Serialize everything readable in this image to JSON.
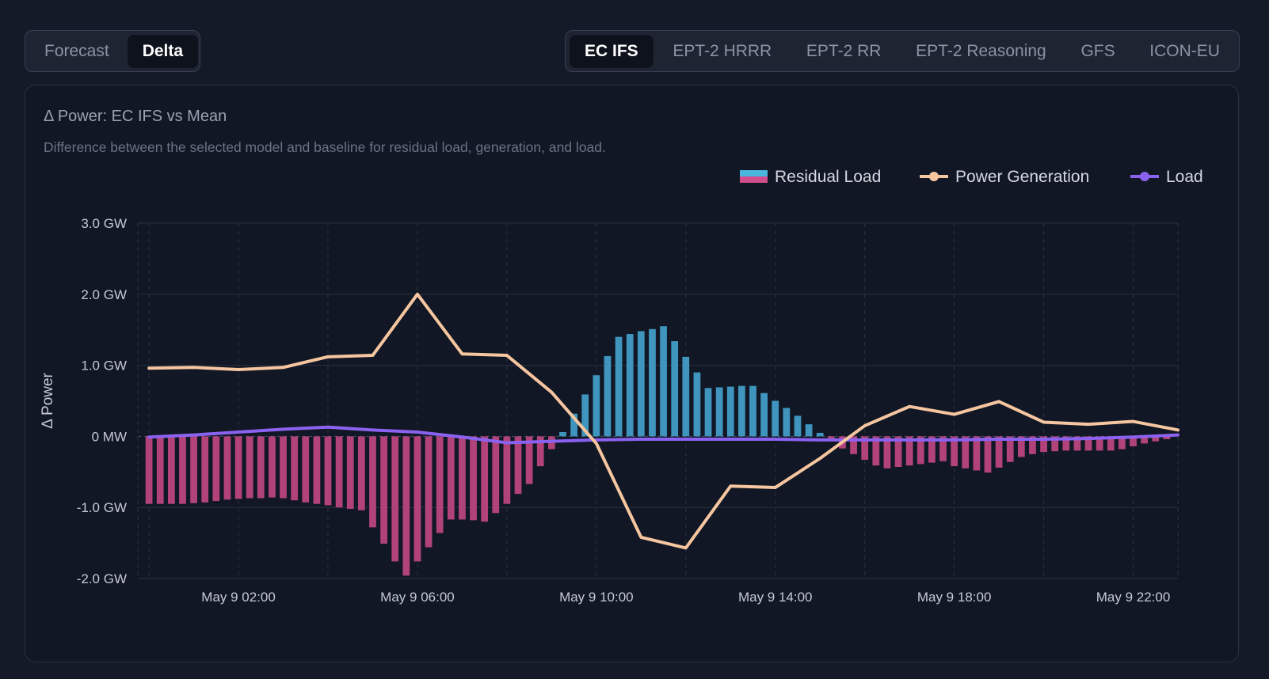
{
  "view_toggle": {
    "items": [
      {
        "label": "Forecast",
        "active": false
      },
      {
        "label": "Delta",
        "active": true
      }
    ]
  },
  "model_tabs": {
    "items": [
      {
        "label": "EC IFS",
        "active": true
      },
      {
        "label": "EPT-2 HRRR",
        "active": false
      },
      {
        "label": "EPT-2 RR",
        "active": false
      },
      {
        "label": "EPT-2 Reasoning",
        "active": false
      },
      {
        "label": "GFS",
        "active": false
      },
      {
        "label": "ICON-EU",
        "active": false
      }
    ]
  },
  "card": {
    "title": "Δ Power: EC IFS vs Mean",
    "subtitle": "Difference between the selected model and baseline for residual load, generation, and load."
  },
  "colors": {
    "residual_positive": "#3f95bd",
    "residual_negative": "#b1437a",
    "generation": "#f6c6a0",
    "load": "#8b62f0",
    "legend_residual_top": "#4ab6dd",
    "legend_residual_bottom": "#d24d8c"
  },
  "chart_data": {
    "type": "bar",
    "ylabel": "Δ Power",
    "ylim": [
      -2.0,
      3.0
    ],
    "y_ticks": [
      3.0,
      2.0,
      1.0,
      0,
      -1.0,
      -2.0
    ],
    "y_tick_labels": [
      "3.0 GW",
      "2.0 GW",
      "1.0 GW",
      "0 MW",
      "-1.0 GW",
      "-2.0 GW"
    ],
    "x_range_hours": [
      -0.25,
      23.0
    ],
    "x_ticks_hours": [
      2,
      6,
      10,
      14,
      18,
      22
    ],
    "x_tick_labels": [
      "May 9 02:00",
      "May 9 06:00",
      "May 9 10:00",
      "May 9 14:00",
      "May 9 18:00",
      "May 9 22:00"
    ],
    "legend": [
      "Residual Load",
      "Power Generation",
      "Load"
    ],
    "legend_position": "top-right",
    "grid": true,
    "series": [
      {
        "name": "Residual Load",
        "type": "bar",
        "interval_hours": 0.25,
        "start_hour": 0,
        "values": [
          -0.95,
          -0.95,
          -0.95,
          -0.95,
          -0.94,
          -0.93,
          -0.91,
          -0.89,
          -0.88,
          -0.87,
          -0.87,
          -0.86,
          -0.87,
          -0.9,
          -0.93,
          -0.95,
          -0.97,
          -1.0,
          -1.02,
          -1.04,
          -1.28,
          -1.51,
          -1.76,
          -1.96,
          -1.76,
          -1.56,
          -1.36,
          -1.17,
          -1.17,
          -1.18,
          -1.2,
          -1.08,
          -0.95,
          -0.81,
          -0.67,
          -0.42,
          -0.18,
          0.06,
          0.32,
          0.59,
          0.86,
          1.13,
          1.4,
          1.44,
          1.48,
          1.51,
          1.55,
          1.34,
          1.12,
          0.9,
          0.68,
          0.69,
          0.7,
          0.71,
          0.71,
          0.61,
          0.5,
          0.4,
          0.29,
          0.17,
          0.05,
          -0.04,
          -0.17,
          -0.25,
          -0.33,
          -0.41,
          -0.45,
          -0.43,
          -0.41,
          -0.39,
          -0.37,
          -0.35,
          -0.42,
          -0.45,
          -0.48,
          -0.51,
          -0.44,
          -0.36,
          -0.29,
          -0.25,
          -0.22,
          -0.21,
          -0.2,
          -0.2,
          -0.2,
          -0.2,
          -0.2,
          -0.18,
          -0.14,
          -0.1,
          -0.07,
          -0.04
        ]
      },
      {
        "name": "Power Generation",
        "type": "line",
        "x_hours": [
          0,
          1,
          2,
          3,
          4,
          5,
          6,
          7,
          8,
          9,
          10,
          11,
          12,
          13,
          14,
          15,
          16,
          17,
          18,
          19,
          20,
          21,
          22,
          23
        ],
        "values": [
          0.96,
          0.97,
          0.94,
          0.97,
          1.12,
          1.14,
          2.0,
          1.16,
          1.14,
          0.62,
          -0.1,
          -1.42,
          -1.57,
          -0.7,
          -0.72,
          -0.31,
          0.15,
          0.42,
          0.31,
          0.49,
          0.2,
          0.17,
          0.21,
          0.09
        ]
      },
      {
        "name": "Load",
        "type": "line",
        "x_hours": [
          0,
          1,
          2,
          3,
          4,
          5,
          6,
          7,
          8,
          9,
          10,
          11,
          12,
          13,
          14,
          15,
          16,
          17,
          18,
          19,
          20,
          21,
          22,
          23
        ],
        "values": [
          -0.01,
          0.02,
          0.06,
          0.1,
          0.13,
          0.09,
          0.06,
          -0.01,
          -0.09,
          -0.07,
          -0.05,
          -0.04,
          -0.04,
          -0.04,
          -0.04,
          -0.05,
          -0.05,
          -0.05,
          -0.05,
          -0.04,
          -0.04,
          -0.03,
          -0.01,
          0.02
        ]
      }
    ]
  }
}
